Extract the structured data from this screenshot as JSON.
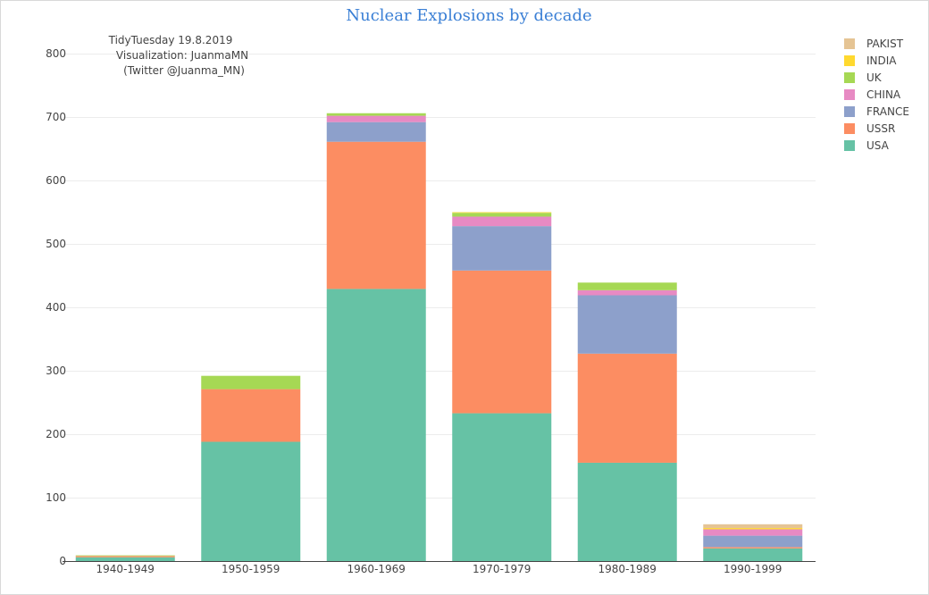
{
  "chart_data": {
    "type": "bar",
    "stacked": true,
    "title": "Nuclear Explosions by decade",
    "annotation": [
      "TidyTuesday 19.8.2019",
      "Visualization: JuanmaMN",
      "(Twitter @Juanma_MN)"
    ],
    "categories": [
      "1940-1949",
      "1950-1959",
      "1960-1969",
      "1970-1979",
      "1980-1989",
      "1990-1999"
    ],
    "ylim": [
      0,
      800
    ],
    "yticks": [
      0,
      100,
      200,
      300,
      400,
      500,
      600,
      700,
      800
    ],
    "grid": true,
    "legend_position": "top-right",
    "series": [
      {
        "name": "USA",
        "color": "#66c2a5",
        "values": [
          6,
          188,
          429,
          233,
          155,
          20
        ]
      },
      {
        "name": "USSR",
        "color": "#fc8d62",
        "values": [
          2,
          83,
          232,
          225,
          172,
          2
        ]
      },
      {
        "name": "FRANCE",
        "color": "#8da0cb",
        "values": [
          0,
          0,
          31,
          70,
          92,
          18
        ]
      },
      {
        "name": "CHINA",
        "color": "#e78ac3",
        "values": [
          0,
          0,
          10,
          15,
          8,
          10
        ]
      },
      {
        "name": "UK",
        "color": "#a6d854",
        "values": [
          1,
          21,
          4,
          6,
          12,
          0
        ]
      },
      {
        "name": "INDIA",
        "color": "#ffd92f",
        "values": [
          0,
          0,
          0,
          1,
          0,
          2
        ]
      },
      {
        "name": "PAKIST",
        "color": "#e5c494",
        "values": [
          0,
          0,
          0,
          0,
          0,
          6
        ]
      }
    ]
  }
}
